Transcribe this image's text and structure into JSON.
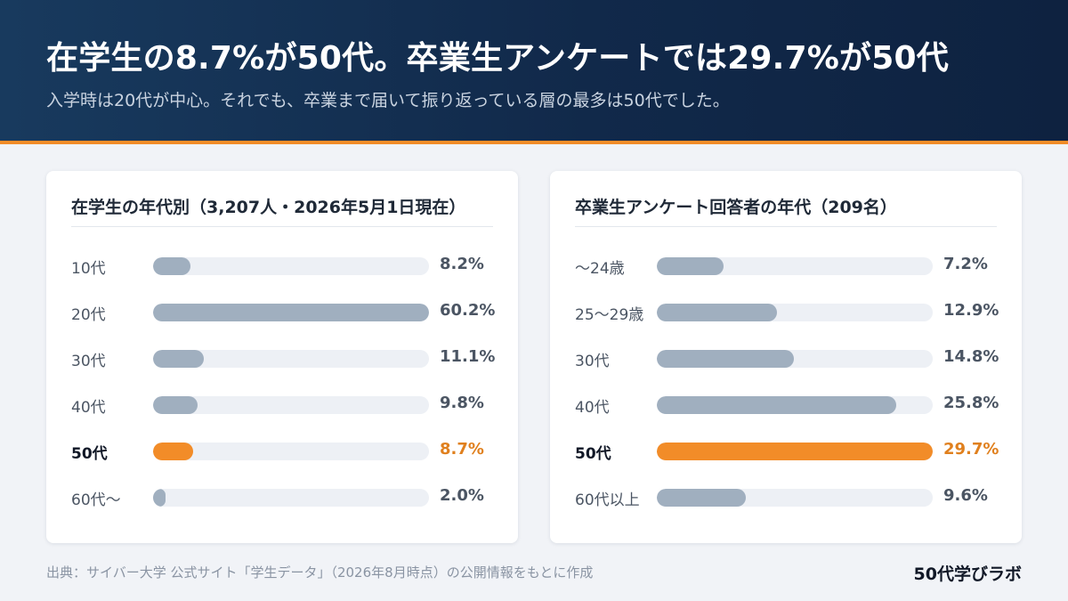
{
  "header": {
    "title": "在学生の8.7%が50代。卒業生アンケートでは29.7%が50代",
    "subtitle": "入学時は20代が中心。それでも、卒業まで届いて振り返っている層の最多は50代でした。"
  },
  "colors": {
    "highlight": "#f28c28",
    "bar": "#a0afbf",
    "track": "#edf0f5",
    "header": "#132f52"
  },
  "chart_data": [
    {
      "type": "bar",
      "orientation": "horizontal",
      "title": "在学生の年代別（3,207人・2026年5月1日現在）",
      "categories": [
        "10代",
        "20代",
        "30代",
        "40代",
        "50代",
        "60代〜"
      ],
      "values": [
        8.2,
        60.2,
        11.1,
        9.8,
        8.7,
        2.0
      ],
      "value_labels": [
        "8.2%",
        "60.2%",
        "11.1%",
        "9.8%",
        "8.7%",
        "2.0%"
      ],
      "highlight_index": 4,
      "xlim": [
        0,
        60.2
      ]
    },
    {
      "type": "bar",
      "orientation": "horizontal",
      "title": "卒業生アンケート回答者の年代（209名）",
      "categories": [
        "〜24歳",
        "25〜29歳",
        "30代",
        "40代",
        "50代",
        "60代以上"
      ],
      "values": [
        7.2,
        12.9,
        14.8,
        25.8,
        29.7,
        9.6
      ],
      "value_labels": [
        "7.2%",
        "12.9%",
        "14.8%",
        "25.8%",
        "29.7%",
        "9.6%"
      ],
      "highlight_index": 4,
      "xlim": [
        0,
        29.7
      ]
    }
  ],
  "footer": {
    "source": "出典：サイバー大学 公式サイト「学生データ」（2026年8月時点）の公開情報をもとに作成",
    "brand": "50代学びラボ"
  }
}
